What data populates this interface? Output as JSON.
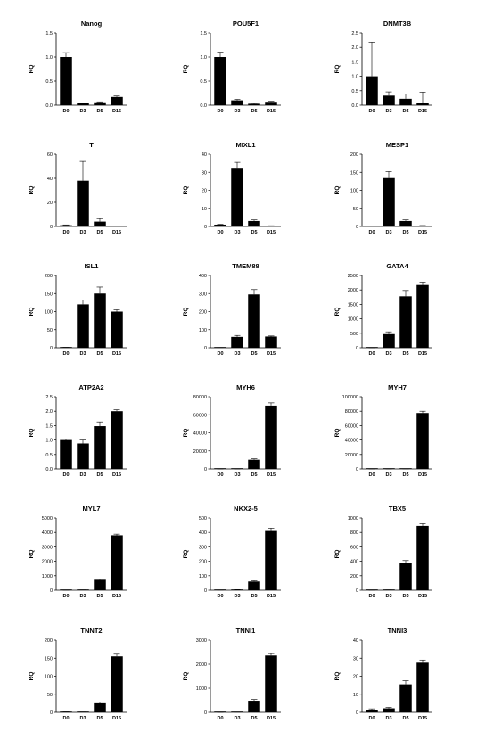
{
  "chart_data": [
    {
      "type": "bar",
      "title": "Nanog",
      "ylabel": "RQ",
      "categories": [
        "D0",
        "D3",
        "D5",
        "D15"
      ],
      "values": [
        1.0,
        0.04,
        0.06,
        0.17
      ],
      "errors": [
        0.09,
        0.01,
        0.01,
        0.02
      ],
      "ylim": [
        0,
        1.5
      ],
      "yticks": [
        "0.0",
        "0.5",
        "1.0",
        "1.5"
      ]
    },
    {
      "type": "bar",
      "title": "POU5F1",
      "ylabel": "RQ",
      "categories": [
        "D0",
        "D3",
        "D5",
        "D15"
      ],
      "values": [
        1.0,
        0.1,
        0.03,
        0.07
      ],
      "errors": [
        0.1,
        0.02,
        0.01,
        0.01
      ],
      "ylim": [
        0,
        1.5
      ],
      "yticks": [
        "0.0",
        "0.5",
        "1.0",
        "1.5"
      ]
    },
    {
      "type": "bar",
      "title": "DNMT3B",
      "ylabel": "RQ",
      "categories": [
        "D0",
        "D3",
        "D5",
        "D15"
      ],
      "values": [
        1.0,
        0.33,
        0.22,
        0.07
      ],
      "errors": [
        1.18,
        0.13,
        0.17,
        0.38
      ],
      "ylim": [
        0,
        2.5
      ],
      "yticks": [
        "0.0",
        "0.5",
        "1.0",
        "1.5",
        "2.0",
        "2.5"
      ]
    },
    {
      "type": "bar",
      "title": "T",
      "ylabel": "RQ",
      "categories": [
        "D0",
        "D3",
        "D5",
        "D15"
      ],
      "values": [
        1.0,
        38,
        4,
        0.3
      ],
      "errors": [
        0.3,
        16,
        2.5,
        0.2
      ],
      "ylim": [
        0,
        60
      ],
      "yticks": [
        "0",
        "20",
        "40",
        "60"
      ]
    },
    {
      "type": "bar",
      "title": "MIXL1",
      "ylabel": "RQ",
      "categories": [
        "D0",
        "D3",
        "D5",
        "D15"
      ],
      "values": [
        1.0,
        32,
        3,
        0.3
      ],
      "errors": [
        0.2,
        3.5,
        0.6,
        0.1
      ],
      "ylim": [
        0,
        40
      ],
      "yticks": [
        "0",
        "10",
        "20",
        "30",
        "40"
      ]
    },
    {
      "type": "bar",
      "title": "MESP1",
      "ylabel": "RQ",
      "categories": [
        "D0",
        "D3",
        "D5",
        "D15"
      ],
      "values": [
        1.0,
        134,
        15,
        2
      ],
      "errors": [
        0.2,
        18,
        3,
        0.5
      ],
      "ylim": [
        0,
        200
      ],
      "yticks": [
        "0",
        "50",
        "100",
        "150",
        "200"
      ]
    },
    {
      "type": "bar",
      "title": "ISL1",
      "ylabel": "RQ",
      "categories": [
        "D0",
        "D3",
        "D5",
        "D15"
      ],
      "values": [
        1.0,
        120,
        150,
        100
      ],
      "errors": [
        0.2,
        12,
        18,
        5
      ],
      "ylim": [
        0,
        200
      ],
      "yticks": [
        "0",
        "50",
        "100",
        "150",
        "200"
      ]
    },
    {
      "type": "bar",
      "title": "TMEM88",
      "ylabel": "RQ",
      "categories": [
        "D0",
        "D3",
        "D5",
        "D15"
      ],
      "values": [
        1.0,
        60,
        295,
        62
      ],
      "errors": [
        0.2,
        8,
        27,
        3
      ],
      "ylim": [
        0,
        400
      ],
      "yticks": [
        "0",
        "100",
        "200",
        "300",
        "400"
      ]
    },
    {
      "type": "bar",
      "title": "GATA4",
      "ylabel": "RQ",
      "categories": [
        "D0",
        "D3",
        "D5",
        "D15"
      ],
      "values": [
        1.0,
        470,
        1780,
        2170
      ],
      "errors": [
        0.2,
        80,
        200,
        100
      ],
      "ylim": [
        0,
        2500
      ],
      "yticks": [
        "0",
        "500",
        "1000",
        "1500",
        "2000",
        "2500"
      ]
    },
    {
      "type": "bar",
      "title": "ATP2A2",
      "ylabel": "RQ",
      "categories": [
        "D0",
        "D3",
        "D5",
        "D15"
      ],
      "values": [
        1.0,
        0.88,
        1.48,
        2.0
      ],
      "errors": [
        0.03,
        0.12,
        0.15,
        0.05
      ],
      "ylim": [
        0,
        2.5
      ],
      "yticks": [
        "0.0",
        "0.5",
        "1.0",
        "1.5",
        "2.0",
        "2.5"
      ]
    },
    {
      "type": "bar",
      "title": "MYH6",
      "ylabel": "RQ",
      "categories": [
        "D0",
        "D3",
        "D5",
        "D15"
      ],
      "values": [
        1.0,
        5,
        10200,
        70200
      ],
      "errors": [
        0.2,
        2,
        1000,
        3000
      ],
      "ylim": [
        0,
        80000
      ],
      "yticks": [
        "0",
        "20000",
        "40000",
        "60000",
        "80000"
      ]
    },
    {
      "type": "bar",
      "title": "MYH7",
      "ylabel": "RQ",
      "categories": [
        "D0",
        "D3",
        "D5",
        "D15"
      ],
      "values": [
        1.0,
        5,
        80,
        77500
      ],
      "errors": [
        0.2,
        2,
        20,
        2500
      ],
      "ylim": [
        0,
        100000
      ],
      "yticks": [
        "0",
        "20000",
        "40000",
        "60000",
        "80000",
        "100000"
      ]
    },
    {
      "type": "bar",
      "title": "MYL7",
      "ylabel": "RQ",
      "categories": [
        "D0",
        "D3",
        "D5",
        "D15"
      ],
      "values": [
        1.0,
        15,
        720,
        3800
      ],
      "errors": [
        0.2,
        5,
        60,
        80
      ],
      "ylim": [
        0,
        5000
      ],
      "yticks": [
        "0",
        "1000",
        "2000",
        "3000",
        "4000",
        "5000"
      ]
    },
    {
      "type": "bar",
      "title": "NKX2-5",
      "ylabel": "RQ",
      "categories": [
        "D0",
        "D3",
        "D5",
        "D15"
      ],
      "values": [
        1.0,
        3,
        60,
        410
      ],
      "errors": [
        0.2,
        1,
        5,
        20
      ],
      "ylim": [
        0,
        500
      ],
      "yticks": [
        "0",
        "100",
        "200",
        "300",
        "400",
        "500"
      ]
    },
    {
      "type": "bar",
      "title": "TBX5",
      "ylabel": "RQ",
      "categories": [
        "D0",
        "D3",
        "D5",
        "D15"
      ],
      "values": [
        1.0,
        3,
        380,
        890
      ],
      "errors": [
        0.2,
        1,
        30,
        30
      ],
      "ylim": [
        0,
        1000
      ],
      "yticks": [
        "0",
        "200",
        "400",
        "600",
        "800",
        "1000"
      ]
    },
    {
      "type": "bar",
      "title": "TNNT2",
      "ylabel": "RQ",
      "categories": [
        "D0",
        "D3",
        "D5",
        "D15"
      ],
      "values": [
        1.0,
        0.5,
        25,
        155
      ],
      "errors": [
        0.2,
        0.2,
        3,
        6
      ],
      "ylim": [
        0,
        200
      ],
      "yticks": [
        "0",
        "50",
        "100",
        "150",
        "200"
      ]
    },
    {
      "type": "bar",
      "title": "TNNI1",
      "ylabel": "RQ",
      "categories": [
        "D0",
        "D3",
        "D5",
        "D15"
      ],
      "values": [
        1.0,
        5,
        480,
        2360
      ],
      "errors": [
        0.2,
        2,
        50,
        80
      ],
      "ylim": [
        0,
        3000
      ],
      "yticks": [
        "0",
        "1000",
        "2000",
        "3000"
      ]
    },
    {
      "type": "bar",
      "title": "TNNI3",
      "ylabel": "RQ",
      "categories": [
        "D0",
        "D3",
        "D5",
        "D15"
      ],
      "values": [
        1.0,
        2.2,
        15.5,
        27.5
      ],
      "errors": [
        0.9,
        0.5,
        2,
        1.5
      ],
      "ylim": [
        0,
        40
      ],
      "yticks": [
        "0",
        "10",
        "20",
        "30",
        "40"
      ]
    }
  ]
}
